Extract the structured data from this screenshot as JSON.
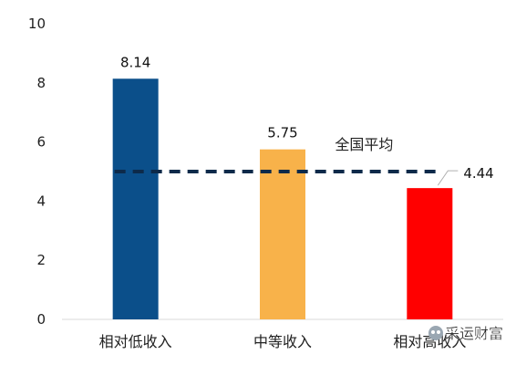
{
  "chart_data": {
    "type": "bar",
    "categories": [
      "相对低收入",
      "中等收入",
      "相对高收入"
    ],
    "values": [
      8.14,
      5.75,
      4.44
    ],
    "data_labels": [
      "8.14",
      "5.75",
      "4.44"
    ],
    "ylim": [
      0,
      10
    ],
    "yticks": [
      0,
      2,
      4,
      6,
      8,
      10
    ],
    "ytick_labels": [
      "0",
      "2",
      "4",
      "6",
      "8",
      "10"
    ],
    "grid": false,
    "legend": "none",
    "reference_line": {
      "label": "全国平均",
      "value": 5.0,
      "style": "dashed",
      "color": "#0d2a4a"
    },
    "colors": [
      "#0b4f8a",
      "#f8b24a",
      "#ff0000"
    ]
  },
  "watermark": "采运财富"
}
